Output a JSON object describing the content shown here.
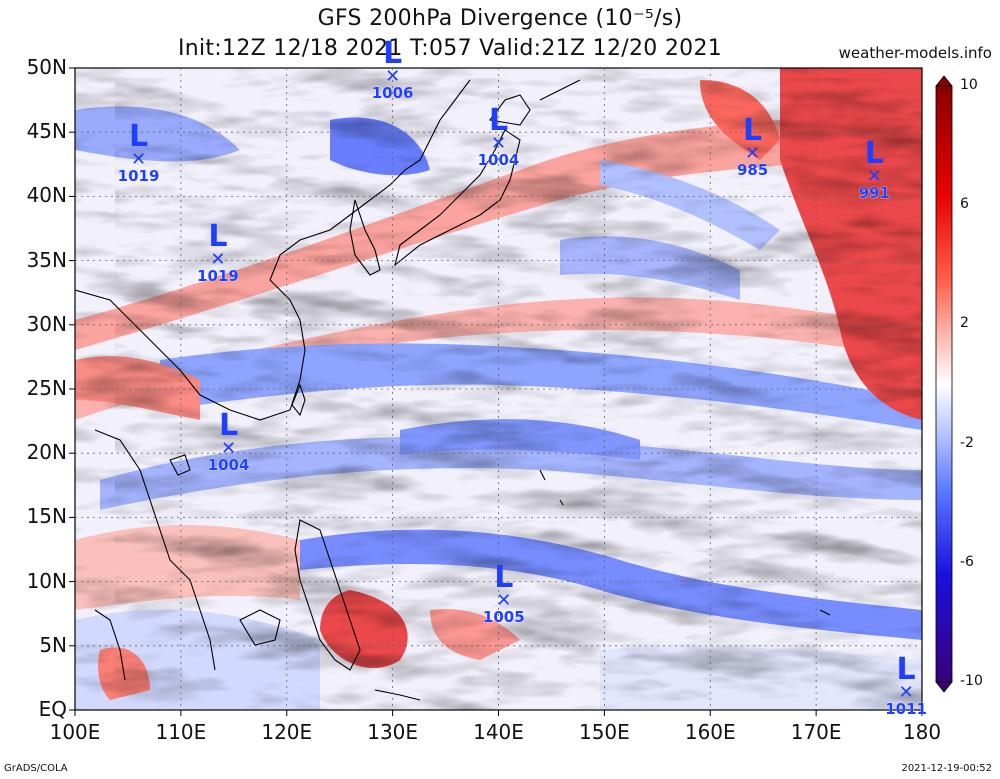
{
  "title": {
    "line1": "GFS 200hPa Divergence (10⁻⁵/s)",
    "line2": "Init:12Z 12/18 2021 T:057 Valid:21Z 12/20 2021"
  },
  "site": "weather-models.info",
  "footer": {
    "left": "GrADS/COLA",
    "right": "2021-12-19-00:52"
  },
  "axes": {
    "lat_labels": [
      "50N",
      "45N",
      "40N",
      "35N",
      "30N",
      "25N",
      "20N",
      "15N",
      "10N",
      "5N",
      "EQ"
    ],
    "lon_labels": [
      "100E",
      "110E",
      "120E",
      "130E",
      "140E",
      "150E",
      "160E",
      "170E",
      "180"
    ],
    "lat_range": [
      0,
      50
    ],
    "lon_range": [
      100,
      180
    ],
    "grid": "dotted"
  },
  "colorbar": {
    "labels": [
      "10",
      "6",
      "2",
      "-2",
      "-6",
      "-10"
    ],
    "colors": [
      "#3a007a",
      "#1a00c8",
      "#2b4dff",
      "#8fa6ff",
      "#d6deff",
      "#ffffff",
      "#ffd9d6",
      "#ff9a90",
      "#ff3a2a",
      "#e80000",
      "#a80000"
    ]
  },
  "lows": [
    {
      "id": "low-1006",
      "pressure": "1006",
      "lon": 130.0,
      "lat": 49.0
    },
    {
      "id": "low-1019a",
      "pressure": "1019",
      "lon": 106.0,
      "lat": 42.5
    },
    {
      "id": "low-1004a",
      "pressure": "1004",
      "lon": 140.0,
      "lat": 43.8
    },
    {
      "id": "low-985",
      "pressure": "985",
      "lon": 164.0,
      "lat": 43.0
    },
    {
      "id": "low-991",
      "pressure": "991",
      "lon": 175.5,
      "lat": 41.2
    },
    {
      "id": "low-1019b",
      "pressure": "1019",
      "lon": 113.5,
      "lat": 34.7
    },
    {
      "id": "low-1004b",
      "pressure": "1004",
      "lon": 114.5,
      "lat": 20.0
    },
    {
      "id": "low-1005",
      "pressure": "1005",
      "lon": 140.5,
      "lat": 8.2
    },
    {
      "id": "low-1011",
      "pressure": "1011",
      "lon": 178.5,
      "lat": 1.0
    }
  ]
}
